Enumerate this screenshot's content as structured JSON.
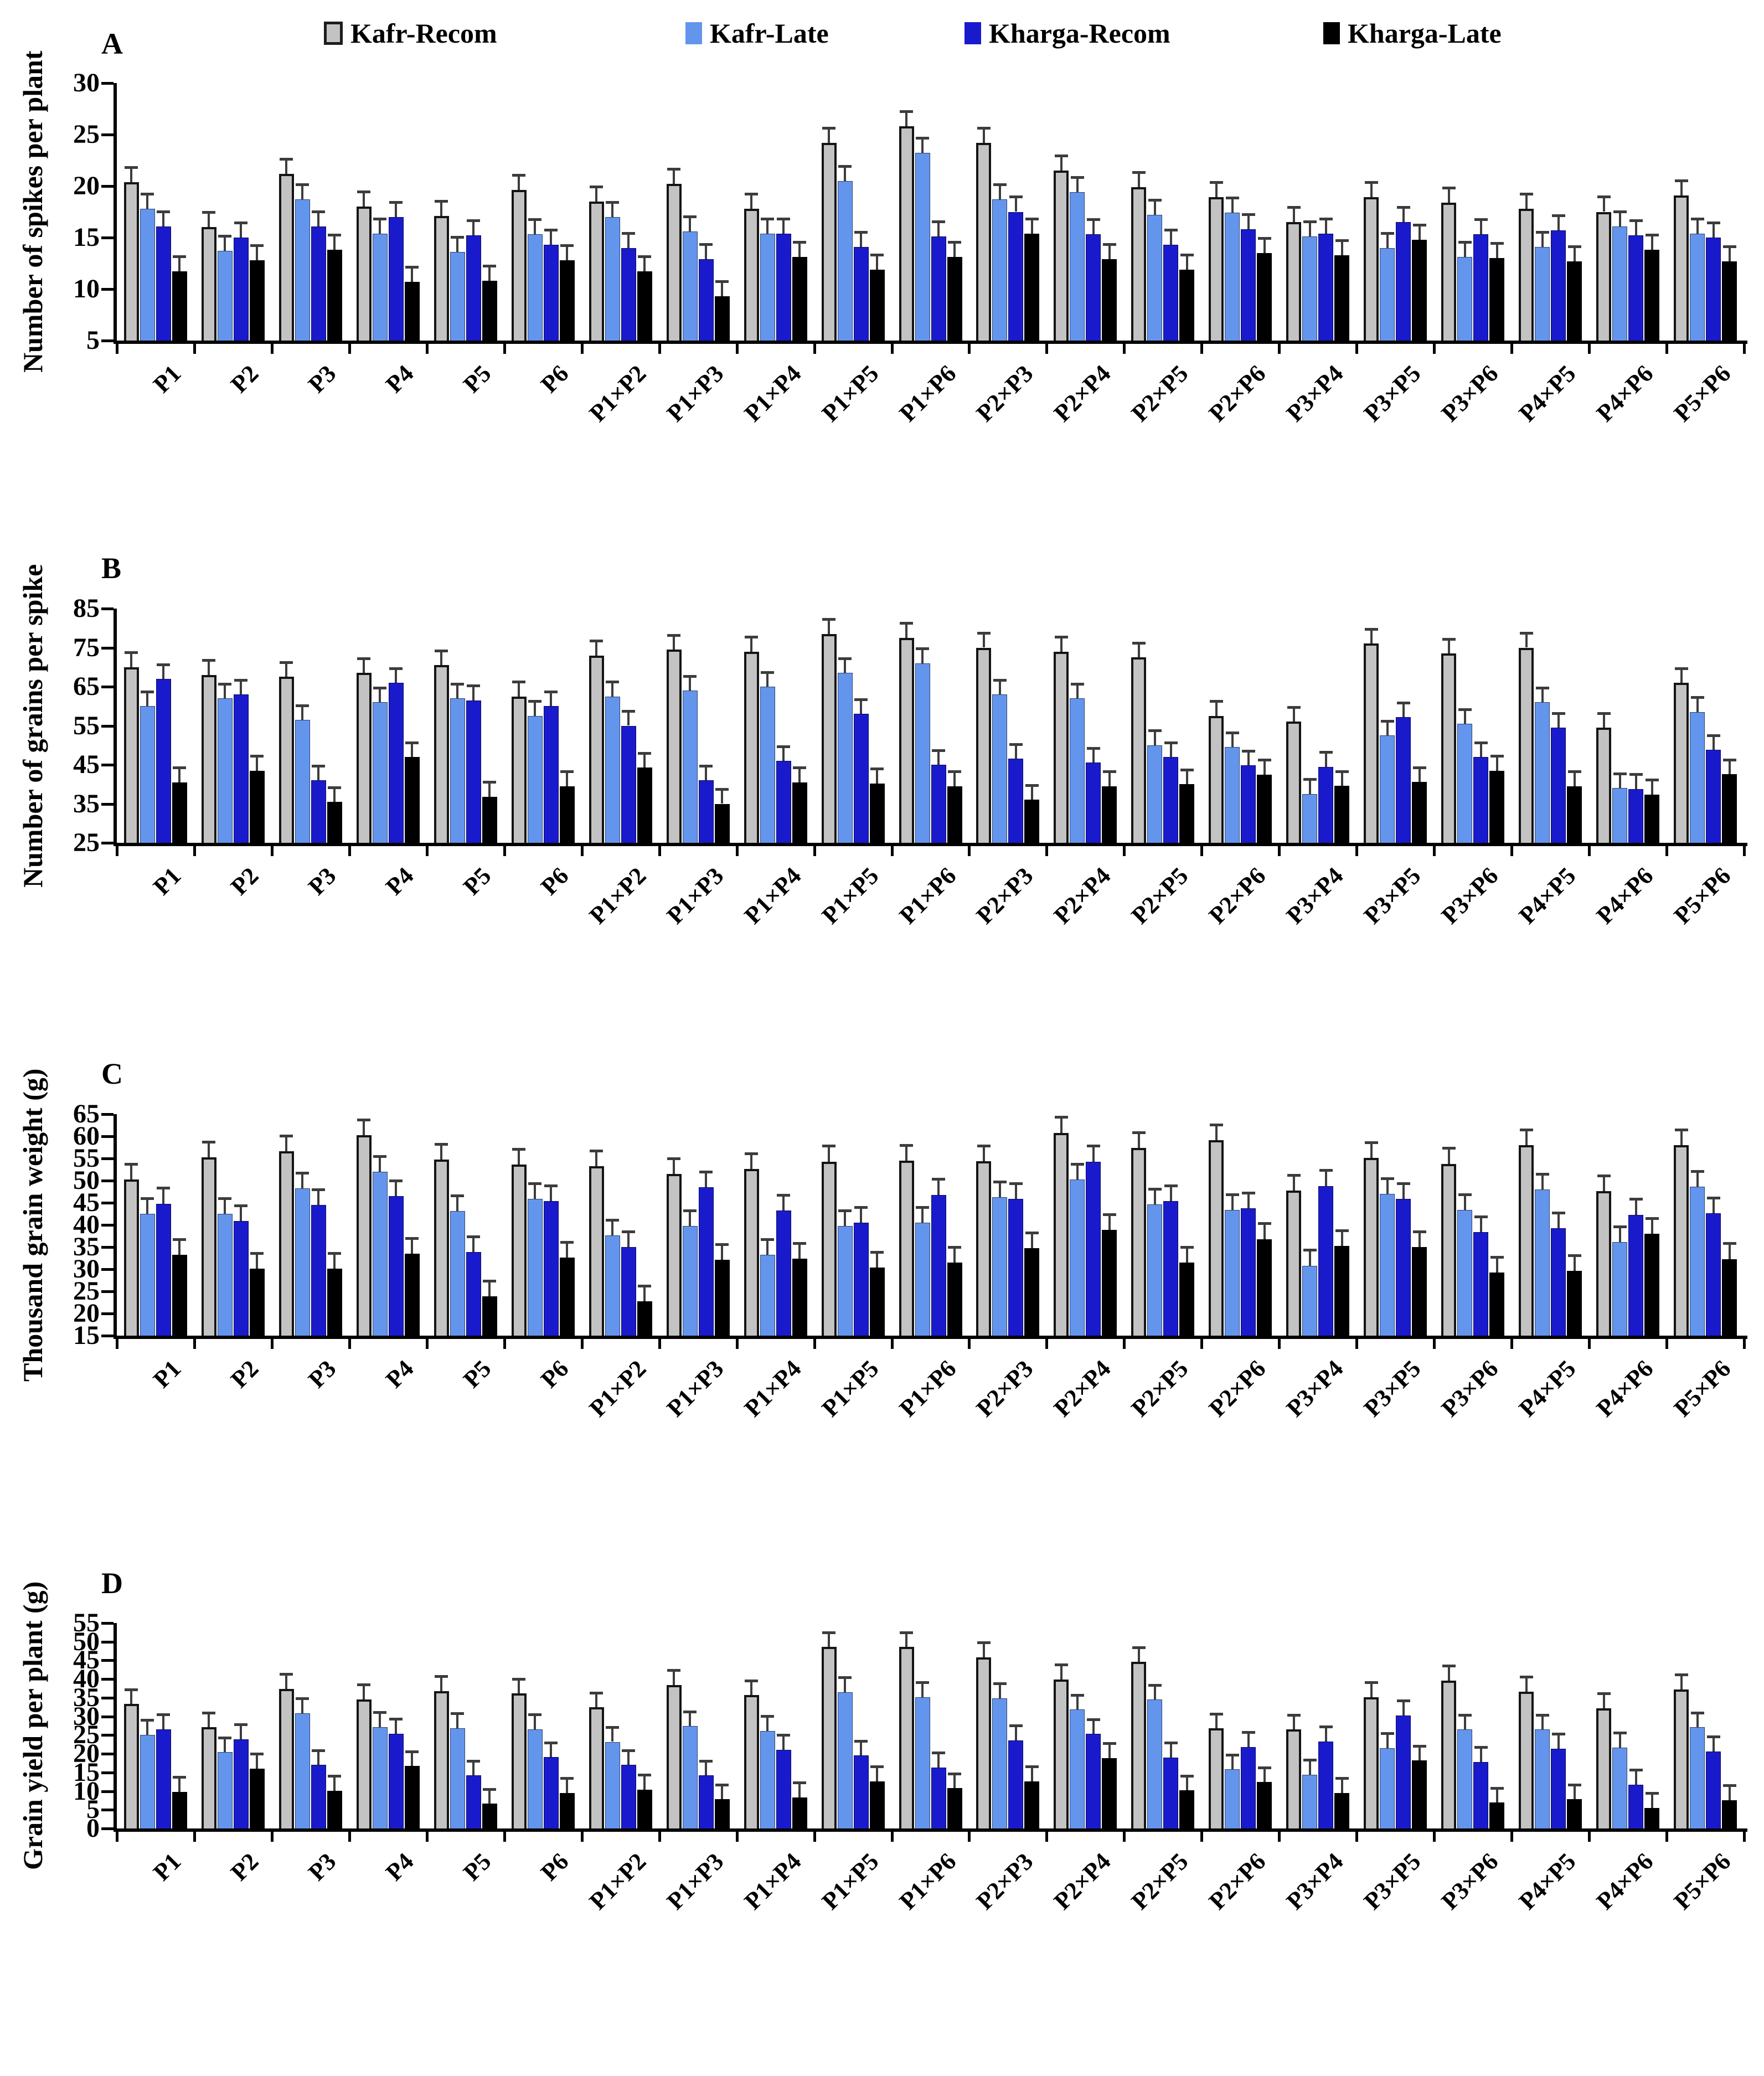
{
  "legend": {
    "items": [
      {
        "label": "Kafr-Recom",
        "color": "#c3c3c3"
      },
      {
        "label": "Kafr-Late",
        "color": "#6495ed"
      },
      {
        "label": "Kharga-Recom",
        "color": "#1a1acd"
      },
      {
        "label": "Kharga-Late",
        "color": "#000000"
      }
    ]
  },
  "chart_data": [
    {
      "type": "bar",
      "panel": "A",
      "ylabel": "Number of spikes per plant",
      "ylim": [
        5,
        30
      ],
      "ystep": 5,
      "grid": false,
      "legend_position": "top",
      "error_bar": 1.4,
      "categories": [
        "P1",
        "P2",
        "P3",
        "P4",
        "P5",
        "P6",
        "P1×P2",
        "P1×P3",
        "P1×P4",
        "P1×P5",
        "P1×P6",
        "P2×P3",
        "P2×P4",
        "P2×P5",
        "P2×P6",
        "P3×P4",
        "P3×P5",
        "P3×P6",
        "P4×P5",
        "P4×P6",
        "P5×P6"
      ],
      "series": [
        {
          "name": "Kafr-Recom",
          "color": "#c3c3c3",
          "values": [
            20.4,
            16.0,
            21.2,
            18.0,
            17.1,
            19.6,
            18.5,
            20.2,
            17.8,
            24.2,
            25.8,
            24.2,
            21.5,
            19.9,
            18.9,
            16.5,
            18.9,
            18.4,
            17.8,
            17.5,
            19.1
          ]
        },
        {
          "name": "Kafr-Late",
          "color": "#6495ed",
          "values": [
            17.8,
            13.7,
            18.7,
            15.4,
            13.6,
            15.3,
            17.0,
            15.6,
            15.4,
            20.5,
            23.2,
            18.7,
            19.4,
            17.2,
            17.4,
            15.1,
            14.0,
            13.1,
            14.1,
            16.1,
            15.4
          ]
        },
        {
          "name": "Kharga-Recom",
          "color": "#1a1acd",
          "values": [
            16.1,
            15.0,
            16.1,
            17.0,
            15.2,
            14.3,
            14.0,
            12.9,
            15.4,
            14.1,
            15.1,
            17.5,
            15.3,
            14.3,
            15.8,
            15.4,
            16.5,
            15.3,
            15.7,
            15.2,
            15.0
          ]
        },
        {
          "name": "Kharga-Late",
          "color": "#000000",
          "values": [
            11.7,
            12.8,
            13.8,
            10.7,
            10.8,
            12.8,
            11.7,
            9.3,
            13.1,
            11.9,
            13.1,
            15.4,
            12.9,
            11.9,
            13.5,
            13.3,
            14.8,
            13.0,
            12.7,
            13.8,
            12.7
          ]
        }
      ]
    },
    {
      "type": "bar",
      "panel": "B",
      "ylabel": "Number of grains per spike",
      "ylim": [
        25,
        85
      ],
      "ystep": 10,
      "grid": false,
      "legend_position": "none",
      "error_bar": 3.6,
      "categories": [
        "P1",
        "P2",
        "P3",
        "P4",
        "P5",
        "P6",
        "P1×P2",
        "P1×P3",
        "P1×P4",
        "P1×P5",
        "P1×P6",
        "P2×P3",
        "P2×P4",
        "P2×P5",
        "P2×P6",
        "P3×P4",
        "P3×P5",
        "P3×P6",
        "P4×P5",
        "P4×P6",
        "P5×P6"
      ],
      "series": [
        {
          "name": "Kafr-Recom",
          "color": "#c3c3c3",
          "values": [
            70,
            68,
            67.5,
            68.5,
            70.5,
            62.5,
            73,
            74.5,
            74,
            78.5,
            77.5,
            75,
            74,
            72.5,
            57.5,
            56,
            76,
            73.5,
            75,
            54.5,
            66
          ]
        },
        {
          "name": "Kafr-Late",
          "color": "#6495ed",
          "values": [
            60,
            62,
            56.5,
            61,
            62,
            57.5,
            62.5,
            64,
            65,
            68.5,
            71,
            63,
            62,
            50,
            49.5,
            37.5,
            52.5,
            55.5,
            61,
            39,
            58.5
          ]
        },
        {
          "name": "Kharga-Recom",
          "color": "#1a1acd",
          "values": [
            67,
            63,
            41,
            66,
            61.5,
            60,
            55,
            41,
            46,
            58,
            45,
            46.5,
            45.5,
            47,
            44.8,
            44.5,
            57.2,
            47,
            54.5,
            38.8,
            48.8
          ]
        },
        {
          "name": "Kharga-Late",
          "color": "#000000",
          "values": [
            40.5,
            43.5,
            35.5,
            47,
            36.8,
            39.5,
            44.3,
            35,
            40.5,
            40.2,
            39.5,
            36,
            39.5,
            40,
            42.5,
            39.6,
            40.6,
            43.5,
            39.5,
            37.4,
            42.6
          ]
        }
      ]
    },
    {
      "type": "bar",
      "panel": "C",
      "ylabel": "Thousand grain weight (g)",
      "ylim": [
        15,
        65
      ],
      "ystep": 5,
      "grid": false,
      "legend_position": "none",
      "error_bar": 3.4,
      "categories": [
        "P1",
        "P2",
        "P3",
        "P4",
        "P5",
        "P6",
        "P1×P2",
        "P1×P3",
        "P1×P4",
        "P1×P5",
        "P1×P6",
        "P2×P3",
        "P2×P4",
        "P2×P5",
        "P2×P6",
        "P3×P4",
        "P3×P5",
        "P3×P6",
        "P4×P5",
        "P4×P6",
        "P5×P6"
      ],
      "series": [
        {
          "name": "Kafr-Recom",
          "color": "#c3c3c3",
          "values": [
            50.2,
            55.2,
            56.6,
            60.2,
            54.7,
            53.6,
            53.2,
            51.5,
            52.6,
            54.3,
            54.5,
            54.4,
            60.8,
            57.4,
            59.1,
            47.7,
            55.1,
            53.8,
            58.0,
            47.6,
            58.0
          ]
        },
        {
          "name": "Kafr-Late",
          "color": "#6495ed",
          "values": [
            42.5,
            42.5,
            48.2,
            52.0,
            43.1,
            45.9,
            37.6,
            39.7,
            33.2,
            39.7,
            40.5,
            46.2,
            50.2,
            44.6,
            43.4,
            30.8,
            47.0,
            43.4,
            48.0,
            36.1,
            48.6
          ]
        },
        {
          "name": "Kharga-Recom",
          "color": "#1a1acd",
          "values": [
            44.8,
            40.9,
            44.5,
            46.5,
            33.9,
            45.4,
            35.0,
            48.5,
            43.2,
            40.5,
            46.8,
            45.9,
            54.3,
            45.4,
            43.7,
            48.8,
            45.9,
            38.4,
            39.2,
            42.3,
            42.6
          ]
        },
        {
          "name": "Kharga-Late",
          "color": "#000000",
          "values": [
            33.2,
            30.1,
            30.1,
            33.5,
            23.9,
            32.6,
            22.7,
            32.1,
            32.4,
            30.4,
            31.5,
            34.7,
            38.9,
            31.5,
            36.8,
            35.2,
            35.0,
            29.2,
            29.6,
            38.0,
            32.3
          ]
        }
      ]
    },
    {
      "type": "bar",
      "panel": "D",
      "ylabel": "Grain yield per plant (g)",
      "ylim": [
        0,
        55
      ],
      "ystep": 5,
      "grid": false,
      "legend_position": "none",
      "error_bar": 3.8,
      "categories": [
        "P1",
        "P2",
        "P3",
        "P4",
        "P5",
        "P6",
        "P1×P2",
        "P1×P3",
        "P1×P4",
        "P1×P5",
        "P1×P6",
        "P2×P3",
        "P2×P4",
        "P2×P5",
        "P2×P6",
        "P3×P4",
        "P3×P5",
        "P3×P6",
        "P4×P5",
        "P4×P6",
        "P5×P6"
      ],
      "series": [
        {
          "name": "Kafr-Recom",
          "color": "#c3c3c3",
          "values": [
            33.3,
            27.1,
            37.4,
            34.6,
            36.8,
            36.1,
            32.4,
            38.4,
            35.7,
            48.6,
            48.6,
            45.8,
            39.9,
            44.6,
            26.8,
            26.5,
            35.2,
            39.6,
            36.6,
            32.2,
            37.2
          ]
        },
        {
          "name": "Kafr-Late",
          "color": "#6495ed",
          "values": [
            25.1,
            20.4,
            30.9,
            27.2,
            26.9,
            26.6,
            23.2,
            27.4,
            26.1,
            36.5,
            35.2,
            34.9,
            31.8,
            34.5,
            15.8,
            14.4,
            21.5,
            26.5,
            26.5,
            21.7,
            27.1
          ]
        },
        {
          "name": "Kharga-Recom",
          "color": "#1a1acd",
          "values": [
            26.6,
            23.9,
            17.0,
            25.4,
            14.2,
            19.1,
            17.0,
            14.2,
            21.1,
            19.5,
            16.3,
            23.6,
            25.3,
            19.0,
            21.8,
            23.3,
            30.3,
            17.8,
            21.4,
            11.7,
            20.6
          ]
        },
        {
          "name": "Kharga-Late",
          "color": "#000000",
          "values": [
            9.8,
            16.0,
            10.1,
            16.7,
            6.6,
            9.5,
            10.4,
            7.8,
            8.3,
            12.6,
            10.8,
            12.6,
            18.9,
            10.2,
            12.4,
            9.5,
            18.2,
            6.9,
            7.8,
            5.5,
            7.6
          ]
        }
      ]
    }
  ]
}
